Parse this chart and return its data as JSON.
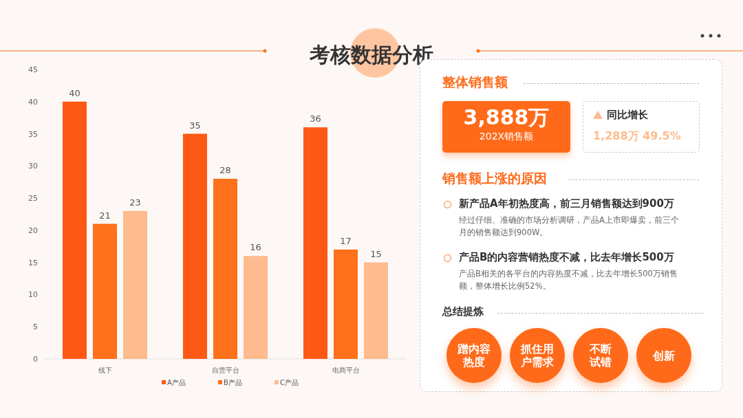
{
  "chart_data": [
    {
      "type": "bar",
      "title": "考核数据分析",
      "categories": [
        "线下",
        "自营平台",
        "电商平台"
      ],
      "series": [
        {
          "name": "A产品",
          "color": "#fe5815",
          "values": [
            40,
            35,
            36
          ]
        },
        {
          "name": "B产品",
          "color": "#fe7019",
          "values": [
            21,
            28,
            17
          ]
        },
        {
          "name": "C产品",
          "color": "#fdbb8e",
          "values": [
            23,
            16,
            15
          ]
        }
      ],
      "ylim": [
        0,
        45
      ],
      "yticks": [
        0,
        5,
        10,
        15,
        20,
        25,
        30,
        35,
        40,
        45
      ],
      "data_labels": true,
      "legend": "bottom",
      "grid": false
    },
    {
      "type": "other",
      "title": "整体销售额",
      "annotations": [
        "3,888万",
        "202X销售额",
        "同比增长",
        "1,288万 49.5%",
        "销售额上涨的原因",
        "新产品A年初热度高，前三月销售额达到900万",
        "经过仔细、准确的市场分析调研，产品A上市即爆卖，前三个月的销售额达到900W。",
        "产品B的内容营销热度不减，比去年增长500万",
        "产品B相关的各平台的内容热度不减，比去年增长500万销售额，整体增长比例52%。",
        "总结提炼",
        "蹭内容热度",
        "抓住用户需求",
        "不断试错",
        "创新"
      ]
    }
  ]
}
